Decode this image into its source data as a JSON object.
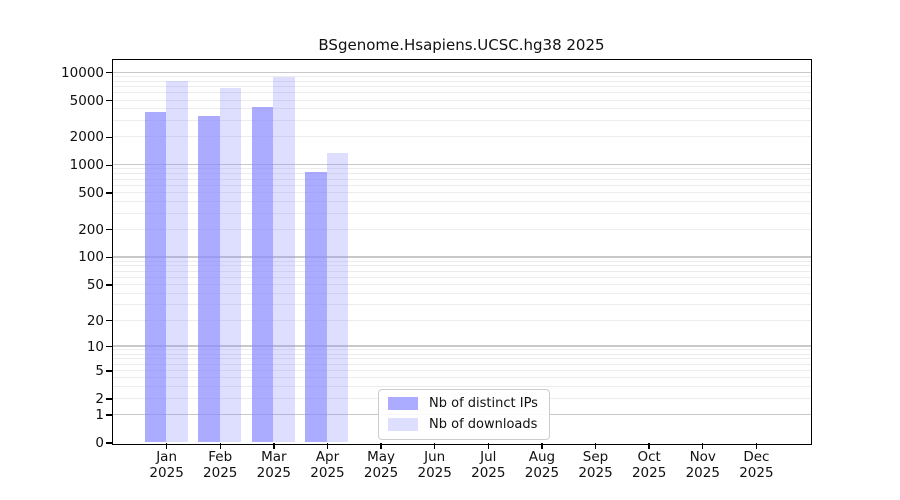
{
  "title": "BSgenome.Hsapiens.UCSC.hg38 2025",
  "chart_data": {
    "type": "bar",
    "title": "BSgenome.Hsapiens.UCSC.hg38 2025",
    "subtitle": "",
    "xlabel": "",
    "ylabel": "",
    "scale": "log1p",
    "ylim": [
      0,
      13700
    ],
    "y_ticks": [
      0,
      1,
      2,
      5,
      10,
      20,
      50,
      100,
      200,
      500,
      1000,
      2000,
      5000,
      10000
    ],
    "grid": "horizontal, minor log gridlines",
    "legend_position": "inside-bottom-center",
    "categories": [
      "Jan",
      "Feb",
      "Mar",
      "Apr",
      "May",
      "Jun",
      "Jul",
      "Aug",
      "Sep",
      "Oct",
      "Nov",
      "Dec"
    ],
    "x_year": "2025",
    "series": [
      {
        "name": "Nb of distinct IPs",
        "color": "#8888ff",
        "opacity": 0.7,
        "values": [
          3700,
          3350,
          4200,
          840,
          null,
          null,
          null,
          null,
          null,
          null,
          null,
          null
        ]
      },
      {
        "name": "Nb of downloads",
        "color": "#8888ff",
        "opacity": 0.28,
        "values": [
          8000,
          6700,
          8850,
          1350,
          null,
          null,
          null,
          null,
          null,
          null,
          null,
          null
        ]
      }
    ],
    "colors": {
      "bar_distinct_ips_rendered": "#aaaaff",
      "bar_downloads_rendered": "#ddddff",
      "major_grid": "#c9c9c9",
      "minor_grid": "#ececec",
      "axis": "#000000",
      "text": "#111111"
    }
  }
}
